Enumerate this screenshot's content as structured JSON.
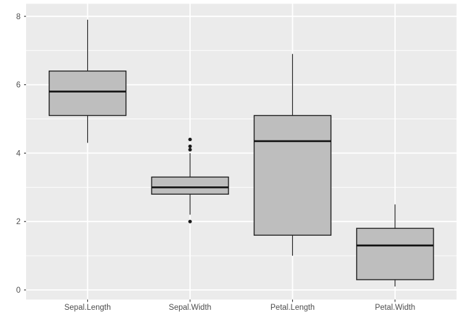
{
  "chart_data": {
    "type": "box",
    "title": "",
    "xlabel": "",
    "ylabel": "",
    "categories": [
      "Sepal.Length",
      "Sepal.Width",
      "Petal.Length",
      "Petal.Width"
    ],
    "series": [
      {
        "name": "Sepal.Length",
        "whisker_low": 4.3,
        "q1": 5.1,
        "median": 5.8,
        "q3": 6.4,
        "whisker_high": 7.9,
        "outliers": []
      },
      {
        "name": "Sepal.Width",
        "whisker_low": 2.2,
        "q1": 2.8,
        "median": 3.0,
        "q3": 3.3,
        "whisker_high": 4.0,
        "outliers": [
          2.0,
          4.1,
          4.2,
          4.4
        ]
      },
      {
        "name": "Petal.Length",
        "whisker_low": 1.0,
        "q1": 1.6,
        "median": 4.35,
        "q3": 5.1,
        "whisker_high": 6.9,
        "outliers": []
      },
      {
        "name": "Petal.Width",
        "whisker_low": 0.1,
        "q1": 0.3,
        "median": 1.3,
        "q3": 1.8,
        "whisker_high": 2.5,
        "outliers": []
      }
    ],
    "y_axis": {
      "major_ticks": [
        0,
        2,
        4,
        6,
        8
      ],
      "tick_labels": [
        "0",
        "2",
        "4",
        "6",
        "8"
      ],
      "minor_ticks": [
        1,
        3,
        5,
        7
      ],
      "range": [
        -0.42,
        8.37
      ]
    },
    "x_axis": {
      "tick_labels": [
        "Sepal.Length",
        "Sepal.Width",
        "Petal.Length",
        "Petal.Width"
      ]
    },
    "legend": {
      "visible": false
    },
    "grid": "on",
    "theme": "ggplot2-grey",
    "colors": {
      "outer_background": "#ffffff",
      "panel_background": "#ebebeb",
      "grid_major": "#ffffff",
      "grid_minor": "#ffffff",
      "box_fill": "#bebebe",
      "box_stroke": "#1f1f1f",
      "median_stroke": "#111111",
      "outlier_fill": "#1a1a1a",
      "axis_text": "#4d4d4d",
      "tick_mark": "#333333"
    }
  }
}
